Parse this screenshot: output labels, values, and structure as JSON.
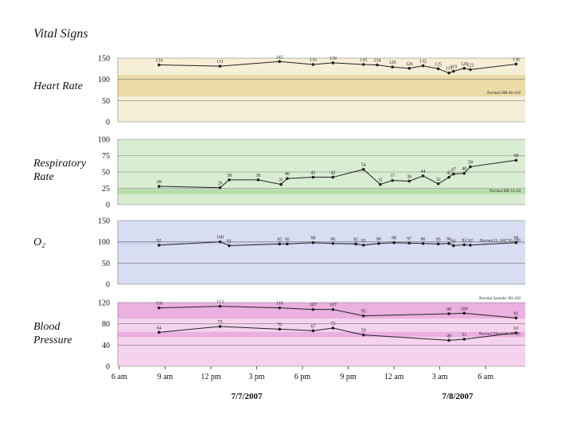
{
  "title": "Vital Signs",
  "xlim": [
    -0.1,
    26.6
  ],
  "xticks": [
    {
      "value": 0,
      "label": "6 am"
    },
    {
      "value": 3,
      "label": "9 am"
    },
    {
      "value": 6,
      "label": "12 pm"
    },
    {
      "value": 9,
      "label": "3 pm"
    },
    {
      "value": 12,
      "label": "6 pm"
    },
    {
      "value": 15,
      "label": "9 pm"
    },
    {
      "value": 18,
      "label": "12 am"
    },
    {
      "value": 21,
      "label": "3 am"
    },
    {
      "value": 24,
      "label": "6 am"
    }
  ],
  "dates": [
    "7/7/2007",
    "7/8/2007"
  ],
  "chart_data": [
    {
      "type": "line",
      "title": "Heart Rate",
      "ylim": [
        0,
        150
      ],
      "yticks": [
        0,
        50,
        100,
        150
      ],
      "background": "#f6eed6",
      "band_color": "#eadaa6",
      "normal": [
        {
          "range": [
            60,
            110
          ],
          "label": "Normal HR 60-110"
        }
      ],
      "series": [
        {
          "color": "#222222",
          "x": [
            2.6,
            6.6,
            10.5,
            12.7,
            14.0,
            16.0,
            16.9,
            17.9,
            19.0,
            19.9,
            20.9,
            21.6,
            21.9,
            22.6,
            23.0,
            26.0
          ],
          "values": [
            134,
            131,
            142,
            135,
            139,
            135,
            134,
            129,
            126,
            132,
            125,
            115,
            119,
            126,
            123,
            136
          ]
        }
      ]
    },
    {
      "type": "line",
      "title": "Respiratory Rate",
      "ylim": [
        0,
        100
      ],
      "yticks": [
        0,
        25,
        50,
        75,
        100
      ],
      "background": "#d9edd2",
      "band_color": "#b8ddac",
      "normal": [
        {
          "range": [
            16,
            24
          ],
          "label": "Normal RR 16-24"
        }
      ],
      "series": [
        {
          "color": "#222222",
          "x": [
            2.6,
            6.6,
            7.2,
            9.1,
            10.6,
            11.0,
            12.7,
            14.0,
            16.0,
            17.1,
            17.9,
            19.0,
            19.9,
            20.9,
            21.6,
            21.9,
            22.6,
            23.0,
            26.0
          ],
          "values": [
            28,
            26,
            38,
            38,
            31,
            40,
            42,
            42,
            54,
            31,
            37,
            36,
            44,
            32,
            42,
            47,
            48,
            58,
            68
          ]
        }
      ]
    },
    {
      "type": "line",
      "title": "O₂",
      "ylim": [
        0,
        150
      ],
      "yticks": [
        0,
        50,
        100,
        150
      ],
      "background": "#d9ddf1",
      "band_color": "#c3cbeb",
      "normal": [
        {
          "range": [
            95,
            100
          ],
          "label": "Normal O₂ SAT 95-100"
        }
      ],
      "series": [
        {
          "color": "#222222",
          "x": [
            2.6,
            6.6,
            7.2,
            10.5,
            11.0,
            12.7,
            14.0,
            15.5,
            16.0,
            17.0,
            18.0,
            19.0,
            19.9,
            20.9,
            21.6,
            21.9,
            22.6,
            23.0,
            26.0
          ],
          "values": [
            92,
            100,
            91,
            95,
            95,
            98,
            96,
            95,
            92,
            96,
            98,
            97,
            96,
            95,
            96,
            91,
            93,
            92,
            98
          ]
        }
      ]
    },
    {
      "type": "line",
      "title": "Blood Pressure",
      "ylim": [
        0,
        120
      ],
      "yticks": [
        0,
        40,
        80,
        120
      ],
      "background": "#f5d3ee",
      "band_color": "#eab0e0",
      "normal": [
        {
          "range": [
            90,
            150
          ],
          "label": "Normal Systolic 90-150"
        },
        {
          "range": [
            55,
            65
          ],
          "label": "Normal Diastolic 55-65"
        }
      ],
      "series": [
        {
          "color": "#222222",
          "x": [
            2.6,
            6.6,
            10.5,
            12.7,
            14.0,
            16.0,
            21.6,
            22.6,
            26.0
          ],
          "values": [
            110,
            113,
            110,
            107,
            107,
            95,
            99,
            100,
            91
          ]
        },
        {
          "color": "#222222",
          "x": [
            2.6,
            6.6,
            10.5,
            12.7,
            14.0,
            16.0,
            21.6,
            22.6,
            26.0
          ],
          "values": [
            64,
            75,
            70,
            67,
            72,
            59,
            49,
            51,
            63
          ]
        }
      ]
    }
  ]
}
